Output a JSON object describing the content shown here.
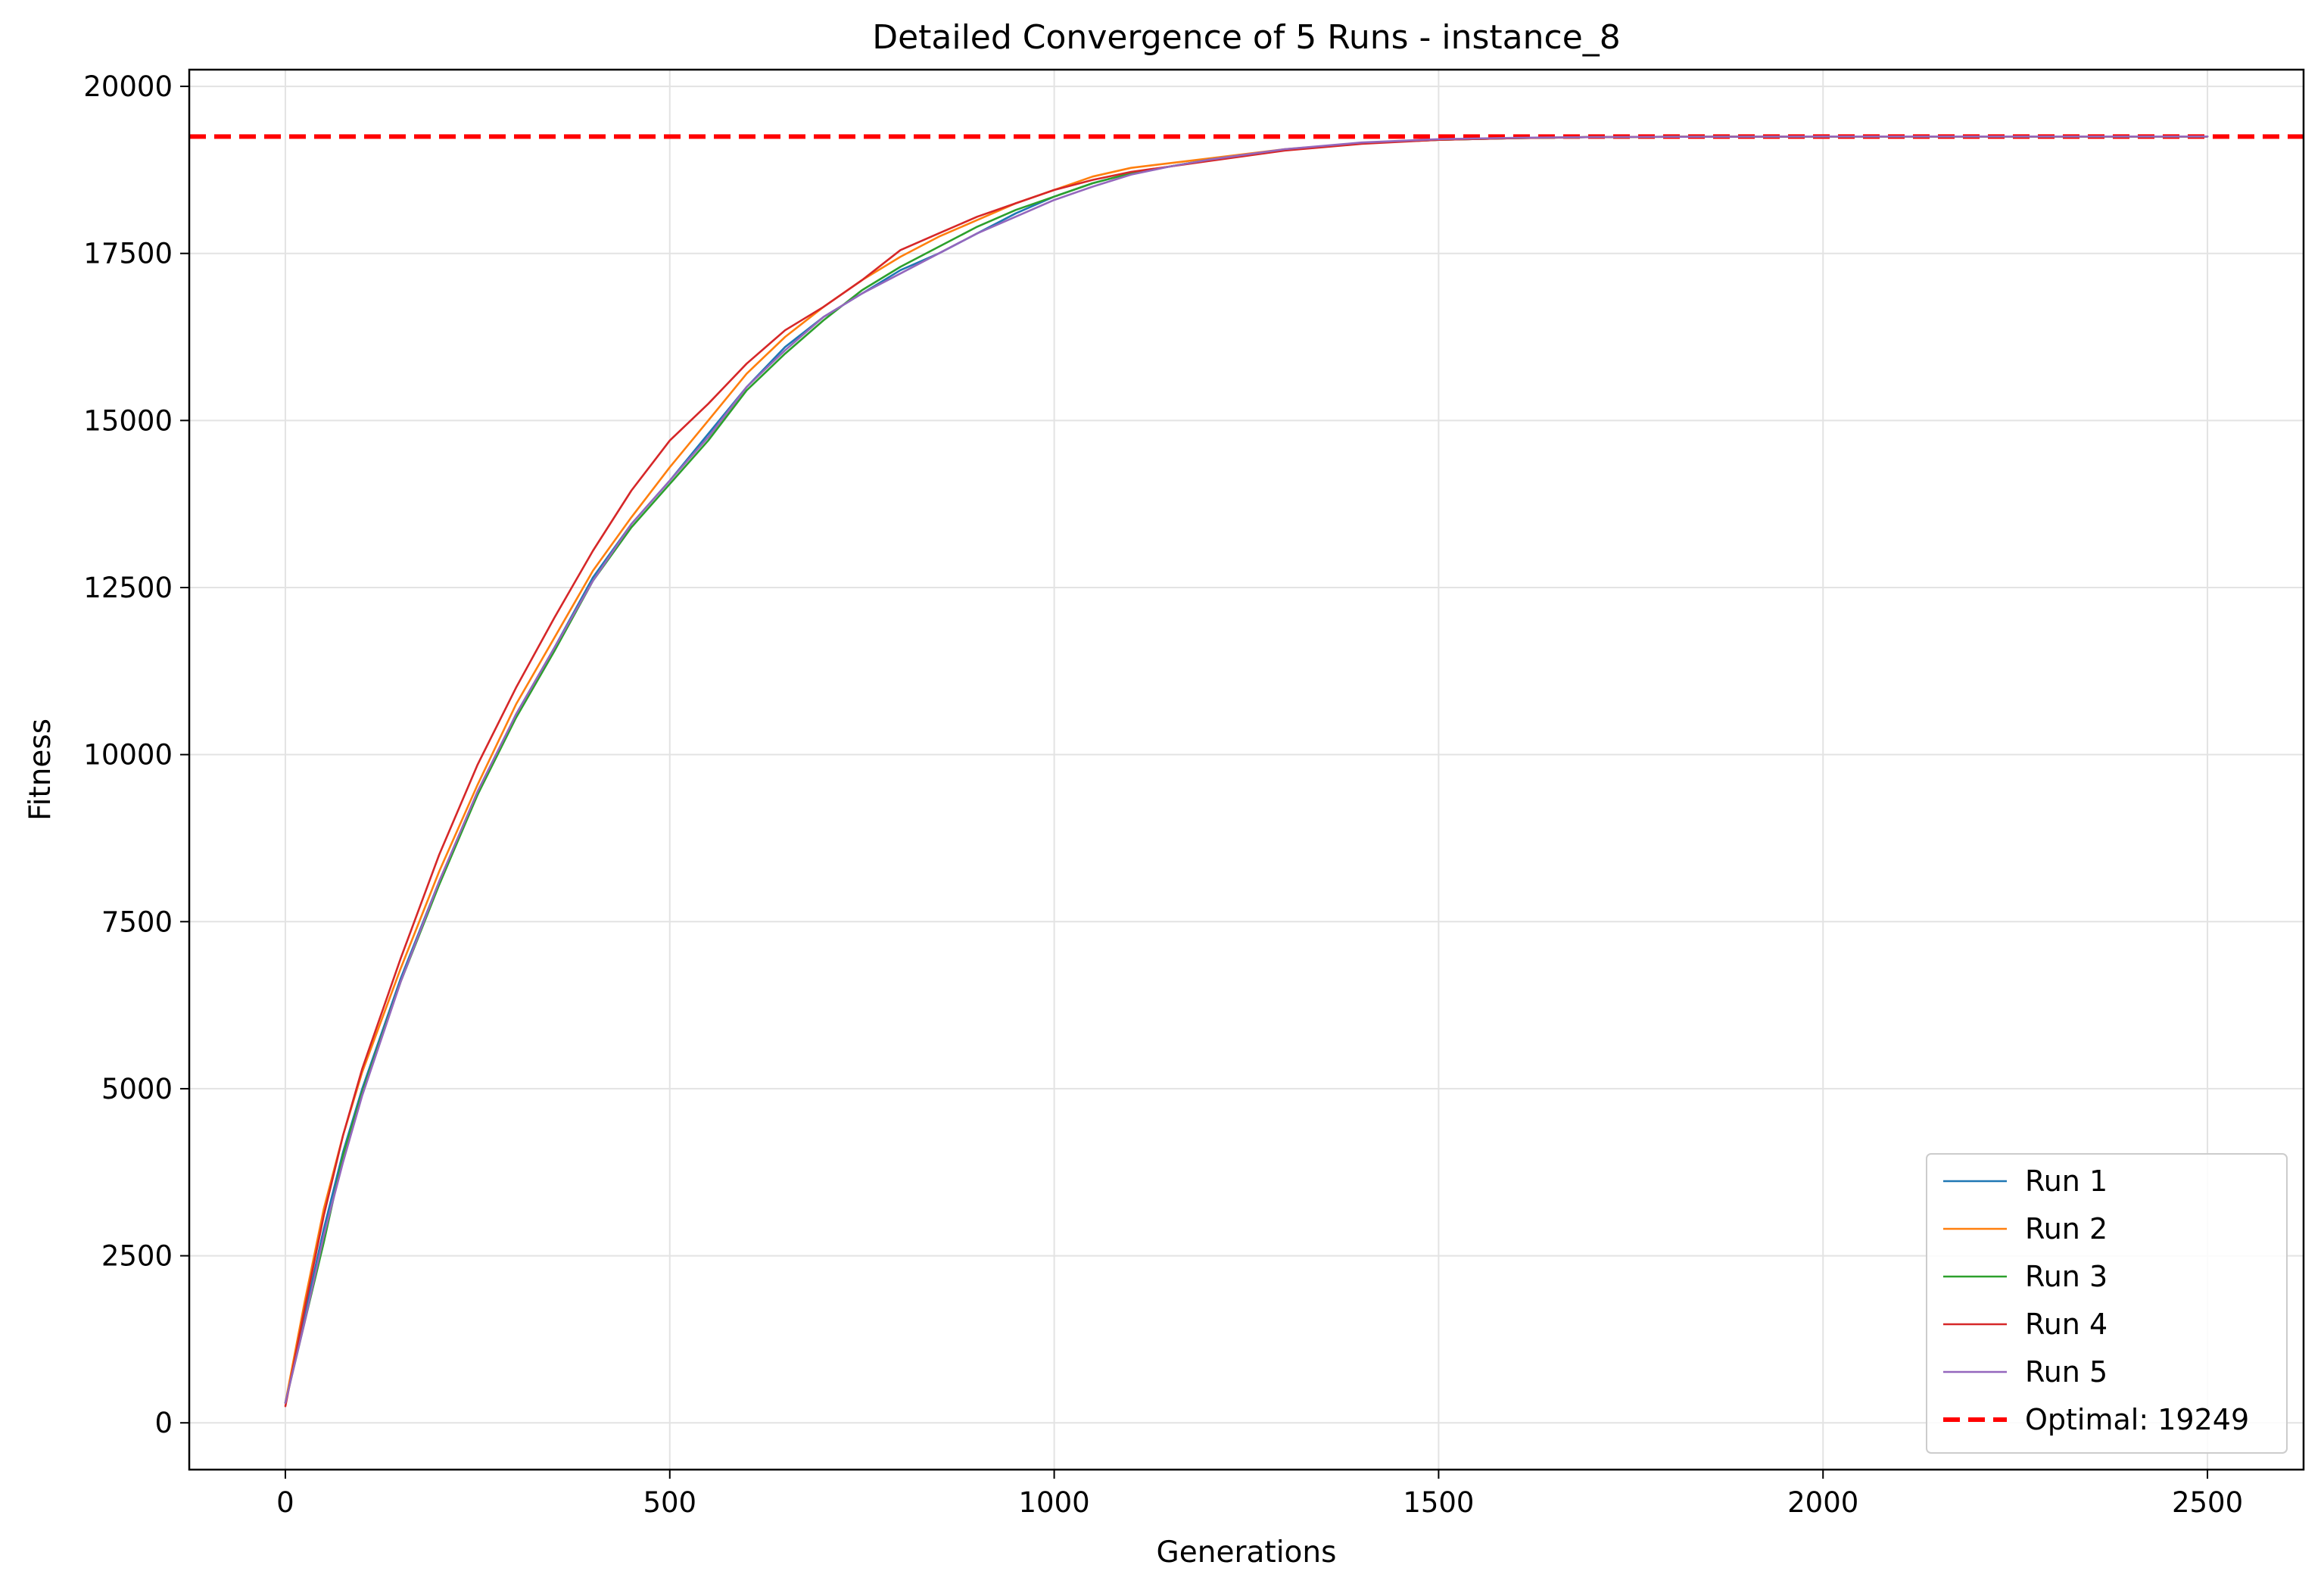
{
  "chart_data": {
    "type": "line",
    "title": "Detailed Convergence of 5 Runs - instance_8",
    "xlabel": "Generations",
    "ylabel": "Fitness",
    "xlim": [
      -125,
      2625
    ],
    "ylim": [
      -700,
      20250
    ],
    "xticks": [
      0,
      500,
      1000,
      1500,
      2000,
      2500
    ],
    "yticks": [
      0,
      2500,
      5000,
      7500,
      10000,
      12500,
      15000,
      17500,
      20000
    ],
    "grid": true,
    "legend_position": "lower right",
    "reference_line": {
      "name": "Optimal: 19249",
      "value": 19249,
      "color": "#ff0000",
      "style": "dashed"
    },
    "series": [
      {
        "name": "Run 1",
        "color": "#1f77b4",
        "x": [
          0,
          25,
          50,
          75,
          100,
          150,
          200,
          250,
          300,
          350,
          400,
          450,
          500,
          550,
          600,
          650,
          700,
          750,
          800,
          850,
          900,
          950,
          1000,
          1050,
          1100,
          1150,
          1200,
          1300,
          1400,
          1500,
          1600,
          1700,
          1800,
          2000,
          2200,
          2400,
          2500
        ],
        "y": [
          300,
          1600,
          2900,
          4050,
          5000,
          6650,
          8100,
          9400,
          10600,
          11600,
          12650,
          13450,
          14100,
          14800,
          15500,
          16100,
          16550,
          16900,
          17250,
          17500,
          17800,
          18100,
          18350,
          18550,
          18700,
          18800,
          18900,
          19050,
          19150,
          19200,
          19225,
          19240,
          19245,
          19249,
          19249,
          19249,
          19249
        ]
      },
      {
        "name": "Run 2",
        "color": "#ff7f0e",
        "x": [
          0,
          25,
          50,
          75,
          100,
          150,
          200,
          250,
          300,
          350,
          400,
          450,
          500,
          550,
          600,
          650,
          700,
          750,
          800,
          850,
          900,
          950,
          1000,
          1050,
          1100,
          1150,
          1200,
          1300,
          1400,
          1500,
          1600,
          1700,
          1800,
          2000,
          2200,
          2400,
          2500
        ],
        "y": [
          300,
          1800,
          3200,
          4300,
          5250,
          6800,
          8250,
          9550,
          10750,
          11750,
          12750,
          13550,
          14300,
          15000,
          15700,
          16250,
          16700,
          17100,
          17450,
          17750,
          18000,
          18250,
          18450,
          18650,
          18780,
          18850,
          18920,
          19060,
          19150,
          19200,
          19225,
          19240,
          19245,
          19249,
          19249,
          19249,
          19249
        ]
      },
      {
        "name": "Run 3",
        "color": "#2ca02c",
        "x": [
          0,
          25,
          50,
          75,
          100,
          150,
          200,
          250,
          300,
          350,
          400,
          450,
          500,
          550,
          600,
          650,
          700,
          750,
          800,
          850,
          900,
          950,
          1000,
          1050,
          1100,
          1150,
          1200,
          1300,
          1400,
          1500,
          1600,
          1700,
          1800,
          2000,
          2200,
          2400,
          2500
        ],
        "y": [
          300,
          1500,
          2700,
          4000,
          4950,
          6600,
          8050,
          9400,
          10550,
          11550,
          12600,
          13400,
          14050,
          14700,
          15450,
          16000,
          16500,
          16950,
          17300,
          17600,
          17900,
          18150,
          18350,
          18550,
          18700,
          18800,
          18900,
          19050,
          19150,
          19200,
          19225,
          19240,
          19245,
          19249,
          19249,
          19249,
          19249
        ]
      },
      {
        "name": "Run 4",
        "color": "#d62728",
        "x": [
          0,
          25,
          50,
          75,
          100,
          150,
          200,
          250,
          300,
          350,
          400,
          450,
          500,
          550,
          600,
          650,
          700,
          750,
          800,
          850,
          900,
          950,
          1000,
          1050,
          1100,
          1150,
          1200,
          1300,
          1400,
          1500,
          1600,
          1700,
          1800,
          2000,
          2200,
          2400,
          2500
        ],
        "y": [
          250,
          1700,
          3100,
          4300,
          5300,
          6950,
          8500,
          9850,
          11000,
          12050,
          13050,
          13950,
          14700,
          15250,
          15850,
          16350,
          16700,
          17100,
          17550,
          17800,
          18050,
          18250,
          18450,
          18600,
          18720,
          18800,
          18880,
          19040,
          19140,
          19200,
          19225,
          19240,
          19245,
          19249,
          19249,
          19249,
          19249
        ]
      },
      {
        "name": "Run 5",
        "color": "#9467bd",
        "x": [
          0,
          25,
          50,
          75,
          100,
          150,
          200,
          250,
          300,
          350,
          400,
          450,
          500,
          550,
          600,
          650,
          700,
          750,
          800,
          850,
          900,
          950,
          1000,
          1050,
          1100,
          1150,
          1200,
          1300,
          1400,
          1500,
          1600,
          1700,
          1800,
          2000,
          2200,
          2400,
          2500
        ],
        "y": [
          300,
          1500,
          2800,
          3900,
          4900,
          6600,
          8100,
          9450,
          10600,
          11600,
          12600,
          13450,
          14100,
          14750,
          15500,
          16050,
          16550,
          16900,
          17200,
          17500,
          17800,
          18050,
          18300,
          18500,
          18680,
          18800,
          18900,
          19060,
          19160,
          19210,
          19230,
          19240,
          19245,
          19249,
          19249,
          19249,
          19249
        ]
      }
    ]
  }
}
